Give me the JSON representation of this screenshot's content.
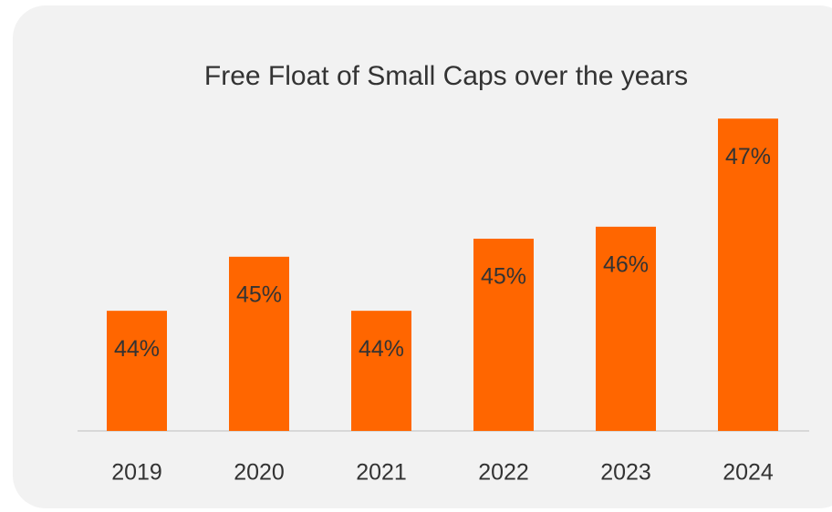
{
  "chart_data": {
    "type": "bar",
    "title": "Free Float of Small Caps over the years",
    "categories": [
      "2019",
      "2020",
      "2021",
      "2022",
      "2023",
      "2024"
    ],
    "values": [
      44.2,
      45.1,
      44.2,
      45.4,
      45.6,
      47.4
    ],
    "value_labels": [
      "44%",
      "45%",
      "44%",
      "45%",
      "46%",
      "47%"
    ],
    "color": "#ff6600",
    "ylim": [
      42.2,
      47.6
    ]
  }
}
